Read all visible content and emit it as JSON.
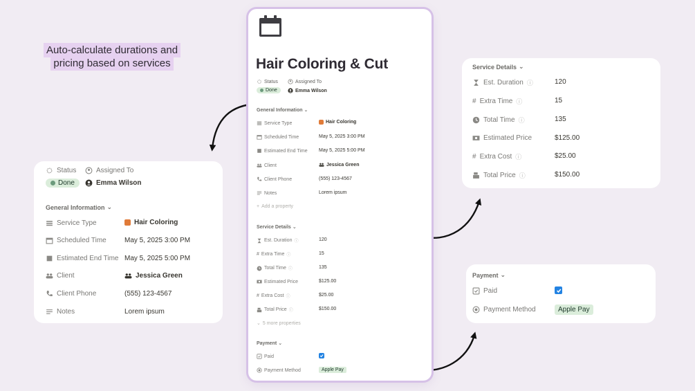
{
  "callout": "Auto-calculate durations and pricing based on services",
  "page": {
    "title": "Hair Coloring & Cut",
    "status_label": "Status",
    "assigned_label": "Assigned To",
    "status_value": "Done",
    "assigned_value": "Emma Wilson",
    "general_info": "General Information",
    "service_type_label": "Service Type",
    "service_type_value": "Hair Coloring",
    "scheduled_label": "Scheduled Time",
    "scheduled_value": "May 5, 2025 3:00 PM",
    "end_label": "Estimated End Time",
    "end_value": "May 5, 2025 5:00 PM",
    "client_label": "Client",
    "client_value": "Jessica Green",
    "phone_label": "Client Phone",
    "phone_value": "(555) 123-4567",
    "notes_label": "Notes",
    "notes_value": "Lorem ipsum",
    "add_property": "Add a property",
    "service_details": "Service Details",
    "duration_label": "Est. Duration",
    "duration_value": "120",
    "extra_time_label": "Extra Time",
    "extra_time_value": "15",
    "total_time_label": "Total Time",
    "total_time_value": "135",
    "est_price_label": "Estimated Price",
    "est_price_value": "$125.00",
    "extra_cost_label": "Extra Cost",
    "extra_cost_value": "$25.00",
    "total_price_label": "Total Price",
    "total_price_value": "$150.00",
    "more_props": "5 more properties",
    "payment": "Payment",
    "paid_label": "Paid",
    "paid_checked": true,
    "method_label": "Payment Method",
    "method_value": "Apple Pay"
  },
  "colors": {
    "background": "#f1ecf3",
    "callout_highlight": "#e6d1f0",
    "page_border": "#d6c1e7",
    "done_badge": "#dbeddb",
    "checkbox": "#2383e2",
    "service_tag_icon": "#e07b39"
  },
  "icons": {
    "page": "calendar-icon",
    "status": "status-sun-icon",
    "assigned": "person-circle-icon",
    "service_type": "list-icon",
    "scheduled": "calendar-icon",
    "end": "square-icon",
    "client": "people-icon",
    "phone": "phone-icon",
    "notes": "notes-lines-icon",
    "duration": "hourglass-icon",
    "extra_time": "hash-icon",
    "total_time": "clock-icon",
    "est_price": "money-icon",
    "extra_cost": "hash-icon",
    "total_price": "cash-register-icon",
    "paid": "checkbox-icon",
    "method": "select-circle-icon"
  }
}
